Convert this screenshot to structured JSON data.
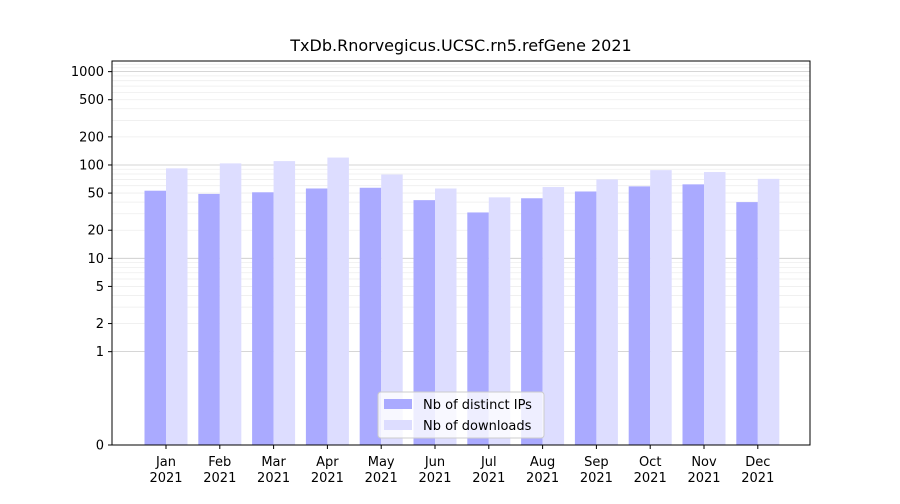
{
  "chart_data": {
    "type": "bar",
    "title": "TxDb.Rnorvegicus.UCSC.rn5.refGene 2021",
    "xlabel": "",
    "ylabel": "",
    "yscale": "symlog",
    "ylim": [
      0,
      1300
    ],
    "grid": true,
    "legend_position": "bottom-center",
    "categories": [
      "Jan\n2021",
      "Feb\n2021",
      "Mar\n2021",
      "Apr\n2021",
      "May\n2021",
      "Jun\n2021",
      "Jul\n2021",
      "Aug\n2021",
      "Sep\n2021",
      "Oct\n2021",
      "Nov\n2021",
      "Dec\n2021"
    ],
    "yticks": [
      0,
      1,
      2,
      5,
      10,
      20,
      50,
      100,
      200,
      500,
      1000
    ],
    "series": [
      {
        "name": "Nb of distinct IPs",
        "color": "#aaaaff",
        "values": [
          53,
          49,
          51,
          56,
          57,
          42,
          31,
          44,
          52,
          59,
          62,
          40
        ]
      },
      {
        "name": "Nb of downloads",
        "color": "#ddddff",
        "values": [
          92,
          104,
          110,
          120,
          79,
          56,
          45,
          58,
          70,
          88,
          84,
          71
        ]
      }
    ]
  }
}
